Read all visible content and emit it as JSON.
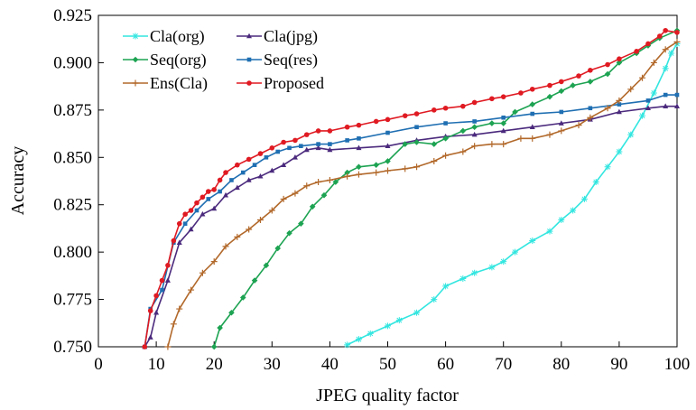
{
  "chart_data": {
    "type": "line",
    "title": "",
    "xlabel": "JPEG quality factor",
    "ylabel": "Accuracy",
    "xlim": [
      0,
      100
    ],
    "ylim": [
      0.75,
      0.925
    ],
    "x_ticks": [
      0,
      10,
      20,
      30,
      40,
      50,
      60,
      70,
      80,
      90,
      100
    ],
    "y_ticks": [
      0.75,
      0.775,
      0.8,
      0.825,
      0.85,
      0.875,
      0.9,
      0.925
    ],
    "x_tick_labels": [
      "0",
      "10",
      "20",
      "30",
      "40",
      "50",
      "60",
      "70",
      "80",
      "90",
      "100"
    ],
    "y_tick_labels": [
      "0.750",
      "0.775",
      "0.800",
      "0.825",
      "0.850",
      "0.875",
      "0.900",
      "0.925"
    ],
    "grid": false,
    "legend_position": "top-left",
    "series": [
      {
        "name": "Cla(org)",
        "color": "#33E6E0",
        "marker": "star",
        "points": [
          [
            43,
            0.751
          ],
          [
            45,
            0.754
          ],
          [
            47,
            0.757
          ],
          [
            50,
            0.761
          ],
          [
            52,
            0.764
          ],
          [
            55,
            0.768
          ],
          [
            58,
            0.775
          ],
          [
            60,
            0.782
          ],
          [
            63,
            0.786
          ],
          [
            65,
            0.789
          ],
          [
            68,
            0.792
          ],
          [
            70,
            0.795
          ],
          [
            72,
            0.8
          ],
          [
            75,
            0.806
          ],
          [
            78,
            0.811
          ],
          [
            80,
            0.817
          ],
          [
            82,
            0.822
          ],
          [
            84,
            0.828
          ],
          [
            86,
            0.837
          ],
          [
            88,
            0.845
          ],
          [
            90,
            0.853
          ],
          [
            92,
            0.862
          ],
          [
            94,
            0.872
          ],
          [
            96,
            0.884
          ],
          [
            98,
            0.897
          ],
          [
            99,
            0.905
          ],
          [
            100,
            0.91
          ]
        ]
      },
      {
        "name": "Cla(jpg)",
        "color": "#4B2A7D",
        "marker": "triangle",
        "points": [
          [
            8,
            0.75
          ],
          [
            9,
            0.755
          ],
          [
            10,
            0.768
          ],
          [
            12,
            0.785
          ],
          [
            14,
            0.805
          ],
          [
            16,
            0.812
          ],
          [
            18,
            0.82
          ],
          [
            20,
            0.823
          ],
          [
            22,
            0.83
          ],
          [
            24,
            0.834
          ],
          [
            26,
            0.838
          ],
          [
            28,
            0.84
          ],
          [
            30,
            0.843
          ],
          [
            32,
            0.846
          ],
          [
            34,
            0.85
          ],
          [
            36,
            0.854
          ],
          [
            38,
            0.855
          ],
          [
            40,
            0.854
          ],
          [
            45,
            0.855
          ],
          [
            50,
            0.856
          ],
          [
            55,
            0.859
          ],
          [
            60,
            0.861
          ],
          [
            65,
            0.862
          ],
          [
            70,
            0.864
          ],
          [
            75,
            0.866
          ],
          [
            80,
            0.868
          ],
          [
            85,
            0.87
          ],
          [
            90,
            0.874
          ],
          [
            95,
            0.876
          ],
          [
            98,
            0.877
          ],
          [
            100,
            0.877
          ]
        ]
      },
      {
        "name": "Seq(org)",
        "color": "#1DA352",
        "marker": "diamond",
        "points": [
          [
            20,
            0.75
          ],
          [
            21,
            0.76
          ],
          [
            23,
            0.768
          ],
          [
            25,
            0.776
          ],
          [
            27,
            0.785
          ],
          [
            29,
            0.793
          ],
          [
            31,
            0.802
          ],
          [
            33,
            0.81
          ],
          [
            35,
            0.815
          ],
          [
            37,
            0.824
          ],
          [
            39,
            0.83
          ],
          [
            41,
            0.837
          ],
          [
            43,
            0.842
          ],
          [
            45,
            0.845
          ],
          [
            48,
            0.846
          ],
          [
            50,
            0.848
          ],
          [
            53,
            0.857
          ],
          [
            55,
            0.858
          ],
          [
            58,
            0.857
          ],
          [
            60,
            0.86
          ],
          [
            63,
            0.864
          ],
          [
            65,
            0.866
          ],
          [
            68,
            0.868
          ],
          [
            70,
            0.868
          ],
          [
            72,
            0.874
          ],
          [
            75,
            0.878
          ],
          [
            78,
            0.882
          ],
          [
            80,
            0.885
          ],
          [
            82,
            0.888
          ],
          [
            85,
            0.89
          ],
          [
            88,
            0.894
          ],
          [
            90,
            0.9
          ],
          [
            93,
            0.905
          ],
          [
            95,
            0.909
          ],
          [
            97,
            0.913
          ],
          [
            100,
            0.917
          ]
        ]
      },
      {
        "name": "Seq(res)",
        "color": "#1F6FB2",
        "marker": "square",
        "points": [
          [
            8,
            0.75
          ],
          [
            9,
            0.77
          ],
          [
            11,
            0.78
          ],
          [
            13,
            0.805
          ],
          [
            15,
            0.815
          ],
          [
            17,
            0.822
          ],
          [
            19,
            0.828
          ],
          [
            21,
            0.832
          ],
          [
            23,
            0.838
          ],
          [
            25,
            0.842
          ],
          [
            27,
            0.846
          ],
          [
            29,
            0.85
          ],
          [
            31,
            0.853
          ],
          [
            33,
            0.855
          ],
          [
            35,
            0.856
          ],
          [
            38,
            0.857
          ],
          [
            40,
            0.857
          ],
          [
            43,
            0.859
          ],
          [
            45,
            0.86
          ],
          [
            50,
            0.863
          ],
          [
            55,
            0.866
          ],
          [
            60,
            0.868
          ],
          [
            65,
            0.869
          ],
          [
            70,
            0.871
          ],
          [
            75,
            0.873
          ],
          [
            80,
            0.874
          ],
          [
            85,
            0.876
          ],
          [
            90,
            0.878
          ],
          [
            95,
            0.88
          ],
          [
            98,
            0.883
          ],
          [
            100,
            0.883
          ]
        ]
      },
      {
        "name": "Ens(Cla)",
        "color": "#B2692B",
        "marker": "plus",
        "points": [
          [
            12,
            0.75
          ],
          [
            13,
            0.762
          ],
          [
            14,
            0.77
          ],
          [
            16,
            0.78
          ],
          [
            18,
            0.789
          ],
          [
            20,
            0.795
          ],
          [
            22,
            0.803
          ],
          [
            24,
            0.808
          ],
          [
            26,
            0.812
          ],
          [
            28,
            0.817
          ],
          [
            30,
            0.822
          ],
          [
            32,
            0.828
          ],
          [
            34,
            0.831
          ],
          [
            36,
            0.835
          ],
          [
            38,
            0.837
          ],
          [
            40,
            0.838
          ],
          [
            43,
            0.84
          ],
          [
            45,
            0.841
          ],
          [
            48,
            0.842
          ],
          [
            50,
            0.843
          ],
          [
            53,
            0.844
          ],
          [
            55,
            0.845
          ],
          [
            58,
            0.848
          ],
          [
            60,
            0.851
          ],
          [
            63,
            0.853
          ],
          [
            65,
            0.856
          ],
          [
            68,
            0.857
          ],
          [
            70,
            0.857
          ],
          [
            73,
            0.86
          ],
          [
            75,
            0.86
          ],
          [
            78,
            0.862
          ],
          [
            80,
            0.864
          ],
          [
            83,
            0.867
          ],
          [
            85,
            0.871
          ],
          [
            88,
            0.876
          ],
          [
            90,
            0.88
          ],
          [
            92,
            0.886
          ],
          [
            94,
            0.892
          ],
          [
            96,
            0.9
          ],
          [
            98,
            0.907
          ],
          [
            100,
            0.911
          ]
        ]
      },
      {
        "name": "Proposed",
        "color": "#E01A22",
        "marker": "circle",
        "points": [
          [
            8,
            0.75
          ],
          [
            9,
            0.769
          ],
          [
            10,
            0.777
          ],
          [
            11,
            0.785
          ],
          [
            12,
            0.793
          ],
          [
            13,
            0.806
          ],
          [
            14,
            0.815
          ],
          [
            15,
            0.82
          ],
          [
            16,
            0.822
          ],
          [
            17,
            0.826
          ],
          [
            18,
            0.829
          ],
          [
            19,
            0.832
          ],
          [
            20,
            0.833
          ],
          [
            21,
            0.838
          ],
          [
            22,
            0.842
          ],
          [
            24,
            0.846
          ],
          [
            26,
            0.849
          ],
          [
            28,
            0.852
          ],
          [
            30,
            0.855
          ],
          [
            32,
            0.858
          ],
          [
            34,
            0.859
          ],
          [
            36,
            0.862
          ],
          [
            38,
            0.864
          ],
          [
            40,
            0.864
          ],
          [
            43,
            0.866
          ],
          [
            45,
            0.867
          ],
          [
            48,
            0.869
          ],
          [
            50,
            0.87
          ],
          [
            53,
            0.872
          ],
          [
            55,
            0.873
          ],
          [
            58,
            0.875
          ],
          [
            60,
            0.876
          ],
          [
            63,
            0.877
          ],
          [
            65,
            0.879
          ],
          [
            68,
            0.881
          ],
          [
            70,
            0.882
          ],
          [
            73,
            0.884
          ],
          [
            75,
            0.886
          ],
          [
            78,
            0.888
          ],
          [
            80,
            0.89
          ],
          [
            83,
            0.893
          ],
          [
            85,
            0.896
          ],
          [
            88,
            0.899
          ],
          [
            90,
            0.902
          ],
          [
            93,
            0.906
          ],
          [
            95,
            0.91
          ],
          [
            97,
            0.914
          ],
          [
            98,
            0.917
          ],
          [
            100,
            0.916
          ]
        ]
      }
    ]
  }
}
